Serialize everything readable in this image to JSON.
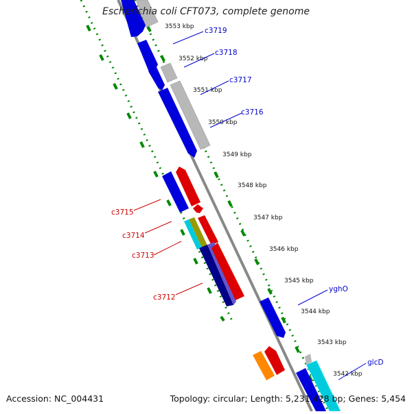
{
  "header": {
    "title": "Escherichia coli CFT073, complete genome"
  },
  "footer": {
    "accession": "Accession: NC_004431",
    "summary": "Topology: circular; Length: 5,231,428 bp; Genes: 5,454"
  },
  "ruler": {
    "unit": "kbp",
    "ticks": [
      "3553 kbp",
      "3552 kbp",
      "3551 kbp",
      "3550 kbp",
      "3549 kbp",
      "3548 kbp",
      "3547 kbp",
      "3546 kbp",
      "3545 kbp",
      "3544 kbp",
      "3543 kbp",
      "3542 kbp"
    ]
  },
  "genes": [
    {
      "label": "c3719",
      "strand": "forward",
      "color": "#0000dd"
    },
    {
      "label": "c3718",
      "strand": "forward",
      "color": "#0000dd"
    },
    {
      "label": "c3717",
      "strand": "forward",
      "color": "#0000dd"
    },
    {
      "label": "c3716",
      "strand": "forward",
      "color": "#0000dd"
    },
    {
      "label": "c3715",
      "strand": "reverse",
      "color": "#dd0000"
    },
    {
      "label": "c3714",
      "strand": "reverse",
      "color": "#dd0000"
    },
    {
      "label": "c3713",
      "strand": "reverse",
      "color": "#dd0000"
    },
    {
      "label": "c3712",
      "strand": "reverse",
      "color": "#dd0000"
    },
    {
      "label": "yghO",
      "strand": "forward",
      "color": "#0000dd"
    },
    {
      "label": "glcD",
      "strand": "forward",
      "color": "#0000dd"
    }
  ],
  "colors": {
    "forward_cds": "#0000dd",
    "reverse_cds": "#dd0000",
    "other_feature": "#b8b8b8",
    "gc_skew": "#00ccdd",
    "orange_feature": "#ff8800",
    "backbone": "#888888",
    "tick_dots": "#008800"
  }
}
